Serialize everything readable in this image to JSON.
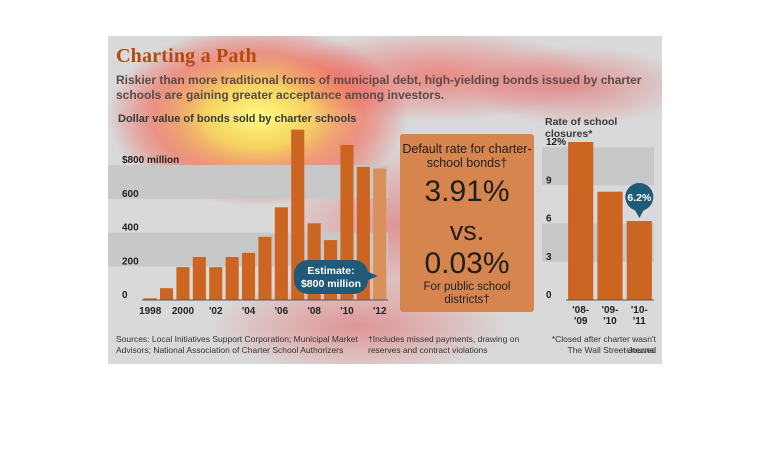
{
  "header": {
    "title": "Charting a Path",
    "subtitle": "Riskier than more traditional forms of municipal debt, high-yielding bonds issued by charter schools are gaining greater acceptance among investors."
  },
  "chart_data": [
    {
      "type": "bar",
      "title": "Dollar value of bonds sold by charter schools",
      "categories": [
        "1998",
        "1999",
        "2000",
        "2001",
        "2002",
        "2003",
        "2004",
        "2005",
        "2006",
        "2007",
        "2008",
        "2009",
        "2010",
        "2011",
        "2012"
      ],
      "x_tick_labels": [
        "1998",
        "2000",
        "'02",
        "'04",
        "'06",
        "'08",
        "'10",
        "'12"
      ],
      "values": [
        10,
        70,
        195,
        255,
        195,
        255,
        280,
        375,
        550,
        1010,
        455,
        355,
        920,
        790,
        780
      ],
      "estimated_last": true,
      "y_tick_labels": [
        "0",
        "200",
        "400",
        "600",
        "$800 million"
      ],
      "y_ticks": [
        0,
        200,
        400,
        600,
        800
      ],
      "ylim": [
        0,
        1020
      ],
      "annotation": "Estimate: $800 million",
      "bar_color": "#cc6522",
      "estimate_color": "#d9905a"
    },
    {
      "type": "bar",
      "title": "Rate of school closures*",
      "categories": [
        "'08-'09",
        "'09-'10",
        "'10-'11"
      ],
      "category_lines": [
        [
          "'08-",
          "'09"
        ],
        [
          "'09-",
          "'10"
        ],
        [
          "'10-",
          "'11"
        ]
      ],
      "values": [
        12.4,
        8.5,
        6.2
      ],
      "y_tick_labels": [
        "0",
        "3",
        "6",
        "9",
        "12%"
      ],
      "y_ticks": [
        0,
        3,
        6,
        9,
        12
      ],
      "ylim": [
        0,
        13.5
      ],
      "annotation": "6.2%",
      "bar_color": "#cc6522"
    }
  ],
  "stat_box": {
    "label": "Default rate for charter-school bonds†",
    "value1": "3.91%",
    "vs": "vs.",
    "value2": "0.03%",
    "sublabel": "For public school districts†"
  },
  "footer": {
    "sources": "Sources: Local Initiatives Support Corporation; Municipal Market Advisors; National Association of Charter School Authorizers",
    "note_dagger": "†Includes missed payments, drawing on reserves and contract violations",
    "note_star": "*Closed after charter wasn't renewed",
    "credit": "The Wall Street Journal"
  },
  "colors": {
    "panel_bg": "#d9d9d9",
    "band": "#c8c8c8",
    "title": "#b24a12",
    "callout": "#1f5a78",
    "stat_box": "#d7854f"
  }
}
